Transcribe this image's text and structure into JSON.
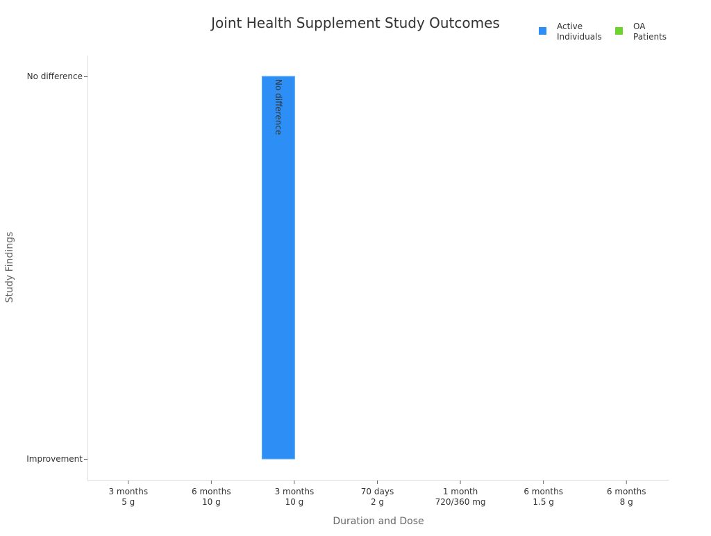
{
  "chart_data": {
    "type": "bar",
    "title": "Joint Health Supplement Study Outcomes",
    "xlabel": "Duration and Dose",
    "ylabel": "Study Findings",
    "y_categories": [
      "Improvement",
      "No difference"
    ],
    "categories": [
      [
        "3 months",
        "5 g"
      ],
      [
        "6 months",
        "10 g"
      ],
      [
        "3 months",
        "10 g"
      ],
      [
        "70 days",
        "2 g"
      ],
      [
        "1 month",
        "720/360 mg"
      ],
      [
        "6 months",
        "1.5 g"
      ],
      [
        "6 months",
        "8 g"
      ]
    ],
    "series": [
      {
        "name": "Active Individuals",
        "color": "#2d8ff5",
        "values": [
          null,
          null,
          "No difference",
          null,
          null,
          null,
          null
        ]
      },
      {
        "name": "OA Patients",
        "color": "#6dd42f",
        "values": [
          null,
          null,
          null,
          null,
          null,
          null,
          null
        ]
      }
    ],
    "legend": {
      "placement": "top-right",
      "entries": [
        [
          "Active",
          "Individuals"
        ],
        [
          "OA",
          "Patients"
        ]
      ]
    },
    "data_labels": [
      null,
      null,
      "No difference",
      null,
      null,
      null,
      null
    ],
    "grid": false
  }
}
